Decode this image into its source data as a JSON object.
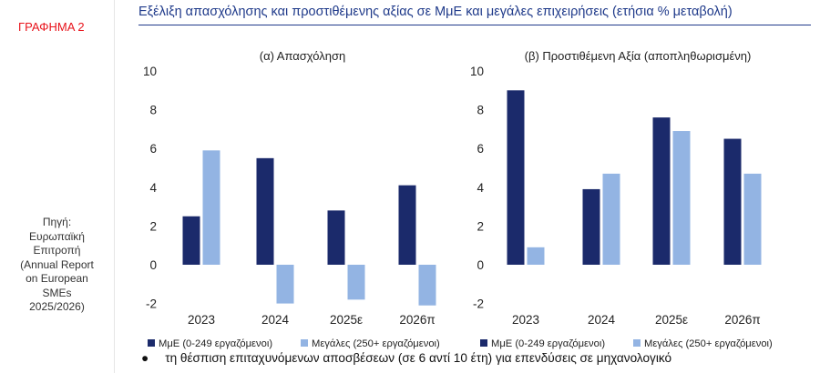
{
  "sidebar": {
    "figure_label": "ΓΡΑΦΗΜΑ 2",
    "source_lines": [
      "Πηγή:",
      "Ευρωπαϊκή",
      "Επιτροπή",
      "(Annual Report",
      "on European",
      "SMEs",
      "2025/2026)"
    ]
  },
  "title": "Εξέλιξη απασχόλησης και προστιθέμενης αξίας σε ΜμΕ και μεγάλες επιχειρήσεις (ετήσια % μεταβολή)",
  "colors": {
    "sme": "#1b2a6b",
    "large": "#93b4e3",
    "title": "#1f3a8a",
    "label": "#e8131b"
  },
  "legend": {
    "sme": "ΜμΕ (0-249 εργαζόμενοι)",
    "large": "Μεγάλες (250+ εργαζόμενοι)"
  },
  "chart_data": [
    {
      "type": "bar",
      "title": "(α) Απασχόληση",
      "categories": [
        "2023",
        "2024",
        "2025ε",
        "2026π"
      ],
      "series": [
        {
          "name": "ΜμΕ (0-249 εργαζόμενοι)",
          "values": [
            2.5,
            5.5,
            2.8,
            4.1
          ]
        },
        {
          "name": "Μεγάλες (250+ εργαζόμενοι)",
          "values": [
            5.9,
            -2.0,
            -1.8,
            -2.1
          ]
        }
      ],
      "ylim": [
        -2,
        10
      ],
      "yticks": [
        -2,
        0,
        2,
        4,
        6,
        8,
        10
      ],
      "grid": false,
      "legend_position": "bottom"
    },
    {
      "type": "bar",
      "title": "(β) Προστιθέμενη Αξία (αποπληθωρισμένη)",
      "categories": [
        "2023",
        "2024",
        "2025ε",
        "2026π"
      ],
      "series": [
        {
          "name": "ΜμΕ (0-249 εργαζόμενοι)",
          "values": [
            9.0,
            3.9,
            7.6,
            6.5
          ]
        },
        {
          "name": "Μεγάλες (250+ εργαζόμενοι)",
          "values": [
            0.9,
            4.7,
            6.9,
            4.7
          ]
        }
      ],
      "ylim": [
        -2,
        10
      ],
      "yticks": [
        -2,
        0,
        2,
        4,
        6,
        8,
        10
      ],
      "grid": false,
      "legend_position": "bottom"
    }
  ],
  "bullet_text": "τη θέσπιση επιταχυνόμενων αποσβέσεων (σε 6 αντί 10 έτη) για επενδύσεις σε μηχανολογικό"
}
